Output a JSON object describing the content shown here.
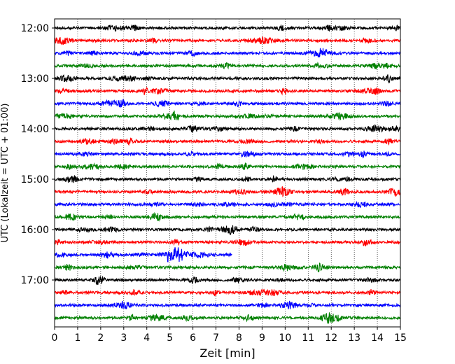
{
  "chart_data": {
    "type": "line",
    "title": "",
    "xlabel": "Zeit  [min]",
    "ylabel": "UTC (Lokalzeit = UTC + 01:00)",
    "xlim": [
      0,
      15
    ],
    "xticks": [
      0,
      1,
      2,
      3,
      4,
      5,
      6,
      7,
      8,
      9,
      10,
      11,
      12,
      13,
      14,
      15
    ],
    "y_tick_labels": [
      "12:00",
      "13:00",
      "14:00",
      "15:00",
      "16:00",
      "17:00"
    ],
    "trace_minutes": 15,
    "grid": "vertical dotted lines at each minute",
    "legend": "none",
    "colors_cycle": [
      "#000000",
      "#ff0000",
      "#0000ff",
      "#008000"
    ],
    "series": [
      {
        "start": "12:00",
        "color": "#000000"
      },
      {
        "start": "12:15",
        "color": "#ff0000"
      },
      {
        "start": "12:30",
        "color": "#0000ff"
      },
      {
        "start": "12:45",
        "color": "#008000"
      },
      {
        "start": "13:00",
        "color": "#000000"
      },
      {
        "start": "13:15",
        "color": "#ff0000"
      },
      {
        "start": "13:30",
        "color": "#0000ff"
      },
      {
        "start": "13:45",
        "color": "#008000"
      },
      {
        "start": "14:00",
        "color": "#000000"
      },
      {
        "start": "14:15",
        "color": "#ff0000"
      },
      {
        "start": "14:30",
        "color": "#0000ff"
      },
      {
        "start": "14:45",
        "color": "#008000"
      },
      {
        "start": "15:00",
        "color": "#000000"
      },
      {
        "start": "15:15",
        "color": "#ff0000"
      },
      {
        "start": "15:30",
        "color": "#0000ff"
      },
      {
        "start": "15:45",
        "color": "#008000"
      },
      {
        "start": "16:00",
        "color": "#000000"
      },
      {
        "start": "16:15",
        "color": "#ff0000"
      },
      {
        "start": "16:30",
        "color": "#0000ff",
        "end_minute": 7.7,
        "event": {
          "start_minute": 4.9,
          "end_minute": 7.0
        }
      },
      {
        "start": "16:45",
        "color": "#008000"
      },
      {
        "start": "17:00",
        "color": "#000000"
      },
      {
        "start": "17:15",
        "color": "#ff0000"
      },
      {
        "start": "17:30",
        "color": "#0000ff"
      },
      {
        "start": "17:45",
        "color": "#008000"
      }
    ]
  }
}
